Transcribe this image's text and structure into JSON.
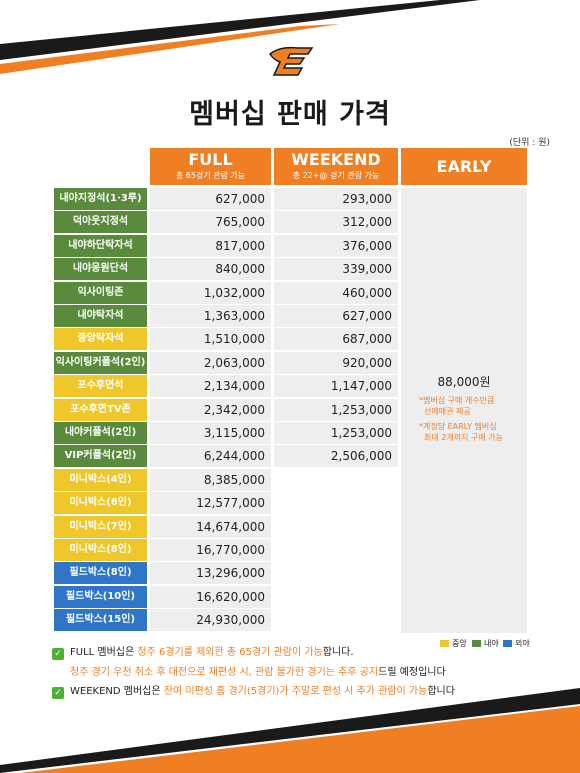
{
  "title": "멤버십 판매 가격",
  "unit_note": "(단위 : 원)",
  "logo_icon": "eagle-e-logo-icon",
  "colors": {
    "orange": "#f07f24",
    "green": "#5a8b3c",
    "yellow": "#efc72b",
    "blue": "#2f76c8"
  },
  "columns": {
    "full": {
      "title": "FULL",
      "sub": "총 65경기 관람 가능"
    },
    "weekend": {
      "title": "WEEKEND",
      "sub": "총 22+@ 경기 관람 가능"
    },
    "early": {
      "title": "EARLY"
    }
  },
  "rows": [
    {
      "seat": "내야지정석(1·3루)",
      "zone": "내야",
      "full": "627,000",
      "weekend": "293,000"
    },
    {
      "seat": "덕아웃지정석",
      "zone": "내야",
      "full": "765,000",
      "weekend": "312,000"
    },
    {
      "seat": "내야하단탁자석",
      "zone": "내야",
      "full": "817,000",
      "weekend": "376,000"
    },
    {
      "seat": "내야응원단석",
      "zone": "내야",
      "full": "840,000",
      "weekend": "339,000"
    },
    {
      "seat": "익사이팅존",
      "zone": "내야",
      "full": "1,032,000",
      "weekend": "460,000"
    },
    {
      "seat": "내야탁자석",
      "zone": "내야",
      "full": "1,363,000",
      "weekend": "627,000"
    },
    {
      "seat": "중앙탁자석",
      "zone": "중앙",
      "full": "1,510,000",
      "weekend": "687,000"
    },
    {
      "seat": "익사이팅커플석(2인)",
      "zone": "내야",
      "full": "2,063,000",
      "weekend": "920,000"
    },
    {
      "seat": "포수후면석",
      "zone": "중앙",
      "full": "2,134,000",
      "weekend": "1,147,000"
    },
    {
      "seat": "포수후면TV존",
      "zone": "중앙",
      "full": "2,342,000",
      "weekend": "1,253,000"
    },
    {
      "seat": "내야커플석(2인)",
      "zone": "내야",
      "full": "3,115,000",
      "weekend": "1,253,000"
    },
    {
      "seat": "VIP커플석(2인)",
      "zone": "내야",
      "full": "6,244,000",
      "weekend": "2,506,000"
    },
    {
      "seat": "미니박스(4인)",
      "zone": "중앙",
      "full": "8,385,000",
      "weekend": ""
    },
    {
      "seat": "미니박스(6인)",
      "zone": "중앙",
      "full": "12,577,000",
      "weekend": ""
    },
    {
      "seat": "미니박스(7인)",
      "zone": "중앙",
      "full": "14,674,000",
      "weekend": ""
    },
    {
      "seat": "미니박스(8인)",
      "zone": "중앙",
      "full": "16,770,000",
      "weekend": ""
    },
    {
      "seat": "필드박스(8인)",
      "zone": "외야",
      "full": "13,296,000",
      "weekend": ""
    },
    {
      "seat": "필드박스(10인)",
      "zone": "외야",
      "full": "16,620,000",
      "weekend": ""
    },
    {
      "seat": "필드박스(15인)",
      "zone": "외야",
      "full": "24,930,000",
      "weekend": ""
    }
  ],
  "early": {
    "price": "88,000원",
    "note1_line1": "*멤버십 구매 개수만큼",
    "note1_line2": "선예매권 제공",
    "note2_line1": "*계정당 EARLY 멤버십",
    "note2_line2": "최대 2개까지 구매 가능"
  },
  "legend": [
    {
      "label": "중앙",
      "color": "#efc72b"
    },
    {
      "label": "내야",
      "color": "#5a8b3c"
    },
    {
      "label": "외야",
      "color": "#2f76c8"
    }
  ],
  "notes": {
    "line1_a": "FULL 멤버십은 ",
    "line1_b": "청주 6경기를 제외한 총 65경기 관람이 가능",
    "line1_c": "합니다.",
    "line2_a": "청주 경기 우천 취소 후 대전으로 재편성 시, 관람 불가한 경기는 추후 공지",
    "line2_b": "드릴 예정입니다",
    "line3_a": "WEEKEND 멤버십은 ",
    "line3_b": "잔여 미편성 홈 경기(5경기)가 주말로 편성 시 추가 관람이 가능",
    "line3_c": "합니다"
  }
}
